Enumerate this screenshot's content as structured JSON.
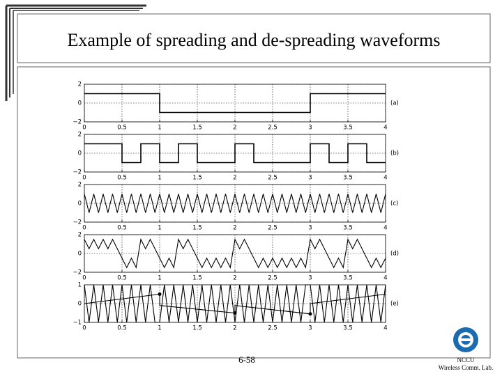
{
  "title": "Example of spreading and de-spreading waveforms",
  "chart_data": [
    {
      "type": "line",
      "label": "(a)",
      "x": [
        0,
        1,
        1,
        3,
        3,
        4
      ],
      "series": [
        {
          "color": "#000000",
          "values": [
            1,
            1,
            -1,
            -1,
            1,
            1
          ]
        }
      ],
      "xlim": [
        0,
        4
      ],
      "ylim": [
        -2,
        2
      ],
      "xticks": [
        0,
        0.5,
        1,
        1.5,
        2,
        2.5,
        3,
        3.5,
        4
      ],
      "yticks": [
        {
          "value": -2,
          "label": "−2"
        },
        0,
        2
      ],
      "grid": true
    },
    {
      "type": "line",
      "label": "(b)",
      "x": [
        0,
        0.5,
        0.5,
        0.75,
        0.75,
        1,
        1,
        1.25,
        1.25,
        1.5,
        1.5,
        2,
        2,
        2.25,
        2.25,
        3,
        3,
        3.25,
        3.25,
        3.5,
        3.5,
        3.75,
        3.75,
        4
      ],
      "series": [
        {
          "color": "#000000",
          "values": [
            1,
            1,
            -1,
            -1,
            1,
            1,
            -1,
            -1,
            1,
            1,
            -1,
            -1,
            1,
            1,
            -1,
            -1,
            1,
            1,
            -1,
            -1,
            1,
            1,
            -1,
            -1
          ]
        }
      ],
      "xlim": [
        0,
        4
      ],
      "ylim": [
        -2,
        2
      ],
      "xticks": [
        0,
        0.5,
        1,
        1.5,
        2,
        2.5,
        3,
        3.5,
        4
      ],
      "yticks": [
        {
          "value": -2,
          "label": "−2"
        },
        0,
        2
      ],
      "grid": true
    },
    {
      "type": "line",
      "label": "(c)",
      "x": [
        0,
        0.0625,
        0.125,
        0.1875,
        0.25,
        0.3125,
        0.375,
        0.4375,
        0.5,
        0.5625,
        0.625,
        0.6875,
        0.75,
        0.8125,
        0.875,
        0.9375,
        1,
        1.0625,
        1.125,
        1.1875,
        1.25,
        1.3125,
        1.375,
        1.4375,
        1.5,
        1.5625,
        1.625,
        1.6875,
        1.75,
        1.8125,
        1.875,
        1.9375,
        2,
        2.0625,
        2.125,
        2.1875,
        2.25,
        2.3125,
        2.375,
        2.4375,
        2.5,
        2.5625,
        2.625,
        2.6875,
        2.75,
        2.8125,
        2.875,
        2.9375,
        3,
        3.0625,
        3.125,
        3.1875,
        3.25,
        3.3125,
        3.375,
        3.4375,
        3.5,
        3.5625,
        3.625,
        3.6875,
        3.75,
        3.8125,
        3.875,
        3.9375,
        4
      ],
      "series": [
        {
          "color": "#000000",
          "values": [
            1,
            -1,
            1,
            -1,
            1,
            -1,
            1,
            -1,
            1,
            -1,
            1,
            -1,
            1,
            -1,
            1,
            -1,
            1,
            -1,
            1,
            -1,
            1,
            -1,
            1,
            -1,
            1,
            -1,
            1,
            -1,
            1,
            -1,
            1,
            -1,
            1,
            -1,
            1,
            -1,
            1,
            -1,
            1,
            -1,
            1,
            -1,
            1,
            -1,
            1,
            -1,
            1,
            -1,
            1,
            -1,
            1,
            -1,
            1,
            -1,
            1,
            -1,
            1,
            -1,
            1,
            -1,
            1,
            -1,
            1,
            -1,
            1
          ]
        }
      ],
      "xlim": [
        0,
        4
      ],
      "ylim": [
        -2,
        2
      ],
      "xticks": [
        0,
        0.5,
        1,
        1.5,
        2,
        2.5,
        3,
        3.5,
        4
      ],
      "yticks": [
        {
          "value": -2,
          "label": "−2"
        },
        0,
        2
      ],
      "grid": true
    },
    {
      "type": "line",
      "label": "(d)",
      "x": [
        0,
        0.0625,
        0.125,
        0.1875,
        0.25,
        0.3125,
        0.375,
        0.4375,
        0.5,
        0.5625,
        0.625,
        0.6875,
        0.75,
        0.8125,
        0.875,
        0.9375,
        1,
        1.0625,
        1.125,
        1.1875,
        1.25,
        1.3125,
        1.375,
        1.4375,
        1.5,
        1.5625,
        1.625,
        1.6875,
        1.75,
        1.8125,
        1.875,
        1.9375,
        2,
        2.0625,
        2.125,
        2.1875,
        2.25,
        2.3125,
        2.375,
        2.4375,
        2.5,
        2.5625,
        2.625,
        2.6875,
        2.75,
        2.8125,
        2.875,
        2.9375,
        3,
        3.0625,
        3.125,
        3.1875,
        3.25,
        3.3125,
        3.375,
        3.4375,
        3.5,
        3.5625,
        3.625,
        3.6875,
        3.75,
        3.8125,
        3.875,
        3.9375,
        4
      ],
      "series": [
        {
          "color": "#000000",
          "values": [
            1.5,
            0.5,
            1.5,
            0.5,
            1.5,
            0.5,
            1.5,
            0.5,
            -0.5,
            -1.5,
            -0.5,
            -1.5,
            1.5,
            0.5,
            1.5,
            0.5,
            -0.5,
            -1.5,
            -0.5,
            -1.5,
            1.5,
            0.5,
            1.5,
            0.5,
            -0.5,
            -1.5,
            -0.5,
            -1.5,
            -0.5,
            -1.5,
            -0.5,
            -1.5,
            1.5,
            0.5,
            1.5,
            0.5,
            -0.5,
            -1.5,
            -0.5,
            -1.5,
            -0.5,
            -1.5,
            -0.5,
            -1.5,
            -0.5,
            -1.5,
            -0.5,
            -1.5,
            1.5,
            0.5,
            1.5,
            0.5,
            -0.5,
            -1.5,
            -0.5,
            -1.5,
            1.5,
            0.5,
            1.5,
            0.5,
            -0.5,
            -1.5,
            -0.5,
            -1.5,
            -0.5
          ]
        }
      ],
      "xlim": [
        0,
        4
      ],
      "ylim": [
        -2,
        2
      ],
      "xticks": [
        0,
        0.5,
        1,
        1.5,
        2,
        2.5,
        3,
        3.5,
        4
      ],
      "yticks": [
        {
          "value": -2,
          "label": "−2"
        },
        0,
        2
      ],
      "grid": true
    },
    {
      "type": "line",
      "label": "(e)",
      "x": [
        0,
        0.0625,
        0.125,
        0.1875,
        0.25,
        0.3125,
        0.375,
        0.4375,
        0.5,
        0.5625,
        0.625,
        0.6875,
        0.75,
        0.8125,
        0.875,
        0.9375,
        1,
        1.0625,
        1.125,
        1.1875,
        1.25,
        1.3125,
        1.375,
        1.4375,
        1.5,
        1.5625,
        1.625,
        1.6875,
        1.75,
        1.8125,
        1.875,
        1.9375,
        2,
        2.0625,
        2.125,
        2.1875,
        2.25,
        2.3125,
        2.375,
        2.4375,
        2.5,
        2.5625,
        2.625,
        2.6875,
        2.75,
        2.8125,
        2.875,
        2.9375,
        3,
        3.0625,
        3.125,
        3.1875,
        3.25,
        3.3125,
        3.375,
        3.4375,
        3.5,
        3.5625,
        3.625,
        3.6875,
        3.75,
        3.8125,
        3.875,
        3.9375,
        4
      ],
      "series": [
        {
          "color": "#000000",
          "values": [
            1,
            -1,
            1,
            -1,
            1,
            -1,
            1,
            -1,
            1,
            -1,
            1,
            -1,
            1,
            -1,
            1,
            -1,
            -1,
            1,
            -1,
            1,
            -1,
            1,
            -1,
            1,
            -1,
            1,
            -1,
            1,
            -1,
            1,
            -1,
            1,
            -1,
            1,
            -1,
            1,
            -1,
            1,
            -1,
            1,
            -1,
            1,
            -1,
            1,
            -1,
            1,
            -1,
            1,
            1,
            -1,
            1,
            -1,
            1,
            -1,
            1,
            -1,
            1,
            -1,
            1,
            -1,
            1,
            -1,
            1,
            -1,
            1
          ]
        },
        {
          "color": "#000000",
          "x": [
            0,
            1,
            1,
            2,
            2,
            3,
            3,
            4
          ],
          "values": [
            0,
            0.5,
            -0.1,
            -0.5,
            -0.1,
            -0.55,
            0,
            0.5
          ]
        },
        {
          "color": "#000000",
          "x": [
            1,
            2,
            3
          ],
          "values": [
            0.5,
            -0.5,
            -0.55
          ],
          "style": "markers"
        }
      ],
      "xlim": [
        0,
        4
      ],
      "ylim": [
        -1,
        1
      ],
      "xticks": [
        0,
        0.5,
        1,
        1.5,
        2,
        2.5,
        3,
        3.5,
        4
      ],
      "yticks": [
        {
          "value": -1,
          "label": "−1"
        },
        0,
        1
      ],
      "grid": true
    }
  ],
  "footer": {
    "page": "6-58",
    "org": "NCCU",
    "lab": "Wireless Comm. Lab."
  }
}
